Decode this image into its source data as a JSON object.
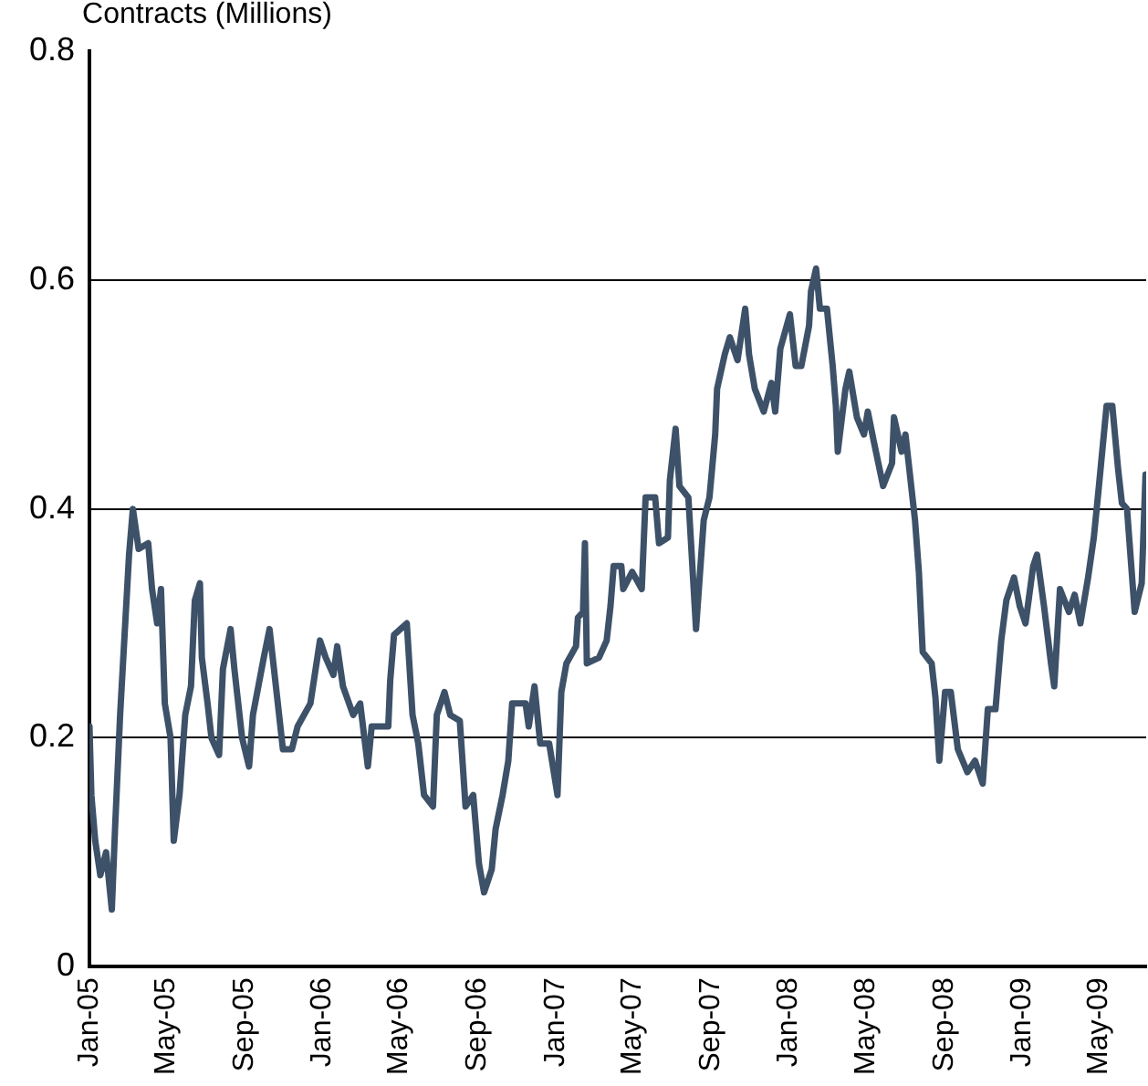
{
  "chart_data": {
    "type": "line",
    "ylabel": "Contracts (Millions)",
    "x": [
      "2005-01-01",
      "2005-01-04",
      "2005-01-10",
      "2005-01-18",
      "2005-01-27",
      "2005-02-05",
      "2005-02-10",
      "2005-02-18",
      "2005-02-26",
      "2005-03-04",
      "2005-03-10",
      "2005-03-19",
      "2005-04-03",
      "2005-04-09",
      "2005-04-17",
      "2005-04-23",
      "2005-04-29",
      "2005-05-08",
      "2005-05-13",
      "2005-05-22",
      "2005-05-31",
      "2005-06-09",
      "2005-06-15",
      "2005-06-23",
      "2005-06-26",
      "2005-07-05",
      "2005-07-11",
      "2005-07-23",
      "2005-07-29",
      "2005-08-10",
      "2005-08-16",
      "2005-08-28",
      "2005-09-08",
      "2005-09-14",
      "2005-10-01",
      "2005-10-10",
      "2005-10-19",
      "2005-10-31",
      "2005-11-14",
      "2005-11-23",
      "2005-12-13",
      "2005-12-28",
      "2006-01-06",
      "2006-01-18",
      "2006-01-24",
      "2006-02-02",
      "2006-02-18",
      "2006-03-01",
      "2006-03-13",
      "2006-03-19",
      "2006-04-14",
      "2006-04-17",
      "2006-04-23",
      "2006-05-13",
      "2006-05-22",
      "2006-05-31",
      "2006-06-09",
      "2006-06-23",
      "2006-06-29",
      "2006-07-11",
      "2006-07-20",
      "2006-08-04",
      "2006-08-13",
      "2006-08-25",
      "2006-09-03",
      "2006-09-11",
      "2006-09-23",
      "2006-09-29",
      "2006-10-10",
      "2006-10-19",
      "2006-10-25",
      "2006-11-15",
      "2006-11-20",
      "2006-11-29",
      "2006-12-08",
      "2006-12-22",
      "2007-01-04",
      "2007-01-10",
      "2007-01-18",
      "2007-02-02",
      "2007-02-05",
      "2007-02-13",
      "2007-02-16",
      "2007-02-19",
      "2007-03-10",
      "2007-03-22",
      "2007-03-28",
      "2007-04-02",
      "2007-04-14",
      "2007-04-17",
      "2007-05-01",
      "2007-05-16",
      "2007-05-22",
      "2007-06-06",
      "2007-06-12",
      "2007-06-26",
      "2007-06-29",
      "2007-07-08",
      "2007-07-14",
      "2007-07-28",
      "2007-08-09",
      "2007-08-21",
      "2007-08-30",
      "2007-09-08",
      "2007-09-11",
      "2007-09-23",
      "2007-10-01",
      "2007-10-13",
      "2007-10-25",
      "2007-10-31",
      "2007-11-09",
      "2007-11-23",
      "2007-12-05",
      "2007-12-11",
      "2007-12-19",
      "2008-01-03",
      "2008-01-12",
      "2008-01-21",
      "2008-02-02",
      "2008-02-05",
      "2008-02-13",
      "2008-02-19",
      "2008-03-01",
      "2008-03-10",
      "2008-03-15",
      "2008-03-18",
      "2008-03-30",
      "2008-04-05",
      "2008-04-17",
      "2008-04-28",
      "2008-05-04",
      "2008-05-13",
      "2008-05-28",
      "2008-06-11",
      "2008-06-14",
      "2008-06-26",
      "2008-07-02",
      "2008-07-11",
      "2008-07-17",
      "2008-07-23",
      "2008-07-29",
      "2008-08-12",
      "2008-08-18",
      "2008-08-24",
      "2008-09-02",
      "2008-09-11",
      "2008-09-22",
      "2008-10-07",
      "2008-10-19",
      "2008-10-31",
      "2008-11-08",
      "2008-11-20",
      "2008-11-29",
      "2008-12-07",
      "2008-12-19",
      "2008-12-28",
      "2009-01-06",
      "2009-01-18",
      "2009-01-24",
      "2009-02-04",
      "2009-02-15",
      "2009-02-20",
      "2009-03-01",
      "2009-03-15",
      "2009-03-24",
      "2009-04-02",
      "2009-04-14",
      "2009-04-23",
      "2009-05-01",
      "2009-05-07",
      "2009-05-13",
      "2009-05-22",
      "2009-05-31",
      "2009-06-06",
      "2009-06-14",
      "2009-06-20",
      "2009-06-26",
      "2009-07-07",
      "2009-07-13"
    ],
    "series": [
      {
        "color": "#3d5168",
        "values": [
          0.21,
          0.15,
          0.11,
          0.08,
          0.1,
          0.05,
          0.12,
          0.22,
          0.3,
          0.36,
          0.4,
          0.365,
          0.37,
          0.33,
          0.3,
          0.33,
          0.23,
          0.2,
          0.11,
          0.15,
          0.22,
          0.245,
          0.32,
          0.335,
          0.27,
          0.23,
          0.2,
          0.185,
          0.26,
          0.295,
          0.26,
          0.2,
          0.175,
          0.22,
          0.27,
          0.295,
          0.25,
          0.19,
          0.19,
          0.21,
          0.23,
          0.285,
          0.27,
          0.255,
          0.28,
          0.245,
          0.22,
          0.23,
          0.175,
          0.21,
          0.21,
          0.25,
          0.29,
          0.3,
          0.22,
          0.195,
          0.15,
          0.14,
          0.22,
          0.24,
          0.22,
          0.215,
          0.14,
          0.15,
          0.09,
          0.065,
          0.085,
          0.12,
          0.15,
          0.18,
          0.23,
          0.23,
          0.21,
          0.245,
          0.195,
          0.195,
          0.15,
          0.24,
          0.265,
          0.28,
          0.305,
          0.31,
          0.37,
          0.265,
          0.27,
          0.285,
          0.315,
          0.35,
          0.35,
          0.33,
          0.345,
          0.33,
          0.41,
          0.41,
          0.37,
          0.375,
          0.425,
          0.47,
          0.42,
          0.41,
          0.295,
          0.39,
          0.41,
          0.465,
          0.505,
          0.535,
          0.55,
          0.53,
          0.575,
          0.535,
          0.505,
          0.485,
          0.51,
          0.485,
          0.54,
          0.57,
          0.525,
          0.525,
          0.56,
          0.59,
          0.61,
          0.575,
          0.575,
          0.525,
          0.49,
          0.45,
          0.505,
          0.52,
          0.48,
          0.465,
          0.485,
          0.46,
          0.42,
          0.44,
          0.48,
          0.45,
          0.465,
          0.42,
          0.39,
          0.345,
          0.275,
          0.265,
          0.235,
          0.18,
          0.24,
          0.24,
          0.19,
          0.17,
          0.18,
          0.16,
          0.225,
          0.225,
          0.285,
          0.32,
          0.34,
          0.315,
          0.3,
          0.35,
          0.36,
          0.315,
          0.265,
          0.245,
          0.33,
          0.31,
          0.325,
          0.3,
          0.34,
          0.375,
          0.42,
          0.455,
          0.49,
          0.49,
          0.435,
          0.405,
          0.4,
          0.355,
          0.31,
          0.335,
          0.43
        ]
      }
    ],
    "xlim": [
      "2005-01-01",
      "2009-07-14"
    ],
    "xticks": [
      {
        "value": "2005-01-01",
        "label": "Jan-05"
      },
      {
        "value": "2005-05-01",
        "label": "May-05"
      },
      {
        "value": "2005-09-01",
        "label": "Sep-05"
      },
      {
        "value": "2006-01-01",
        "label": "Jan-06"
      },
      {
        "value": "2006-05-01",
        "label": "May-06"
      },
      {
        "value": "2006-09-01",
        "label": "Sep-06"
      },
      {
        "value": "2007-01-01",
        "label": "Jan-07"
      },
      {
        "value": "2007-05-01",
        "label": "May-07"
      },
      {
        "value": "2007-09-01",
        "label": "Sep-07"
      },
      {
        "value": "2008-01-01",
        "label": "Jan-08"
      },
      {
        "value": "2008-05-01",
        "label": "May-08"
      },
      {
        "value": "2008-09-01",
        "label": "Sep-08"
      },
      {
        "value": "2009-01-01",
        "label": "Jan-09"
      },
      {
        "value": "2009-05-01",
        "label": "May-09"
      }
    ],
    "ylim": [
      0,
      0.8
    ],
    "yticks": [
      0,
      0.2,
      0.4,
      0.6,
      0.8
    ],
    "grid": "y",
    "marker": "none",
    "line_style": "solid"
  }
}
